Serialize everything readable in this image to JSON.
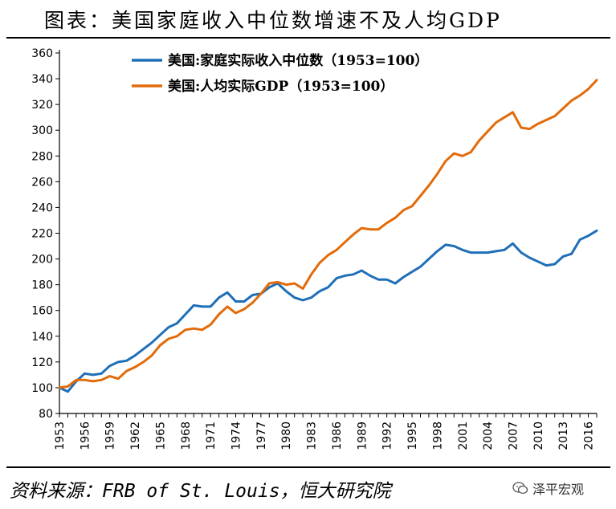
{
  "title": "图表：美国家庭收入中位数增速不及人均GDP",
  "source": "资料来源：FRB of St. Louis，恒大研究院",
  "brand": {
    "label": "泽平宏观",
    "icon": "wechat-bubble-icon"
  },
  "chart_data": {
    "type": "line",
    "title": "",
    "xlabel": "",
    "ylabel": "",
    "xlim": [
      1953,
      2017
    ],
    "ylim": [
      80,
      360
    ],
    "yticks": [
      80,
      100,
      120,
      140,
      160,
      180,
      200,
      220,
      240,
      260,
      280,
      300,
      320,
      340,
      360
    ],
    "xticks": [
      "1953",
      "1956",
      "1959",
      "1962",
      "1965",
      "1968",
      "1971",
      "1974",
      "1977",
      "1980",
      "1983",
      "1986",
      "1989",
      "1992",
      "1995",
      "1998",
      "2001",
      "2004",
      "2007",
      "2010",
      "2013",
      "2016"
    ],
    "legend": "top-left",
    "grid": false,
    "x": [
      1953,
      1954,
      1955,
      1956,
      1957,
      1958,
      1959,
      1960,
      1961,
      1962,
      1963,
      1964,
      1965,
      1966,
      1967,
      1968,
      1969,
      1970,
      1971,
      1972,
      1973,
      1974,
      1975,
      1976,
      1977,
      1978,
      1979,
      1980,
      1981,
      1982,
      1983,
      1984,
      1985,
      1986,
      1987,
      1988,
      1989,
      1990,
      1991,
      1992,
      1993,
      1994,
      1995,
      1996,
      1997,
      1998,
      1999,
      2000,
      2001,
      2002,
      2003,
      2004,
      2005,
      2006,
      2007,
      2008,
      2009,
      2010,
      2011,
      2012,
      2013,
      2014,
      2015,
      2016,
      2017
    ],
    "series": [
      {
        "name": "美国:家庭实际收入中位数（1953=100）",
        "color": "#1f6fb8",
        "values": [
          100,
          97,
          105,
          111,
          110,
          111,
          117,
          120,
          121,
          125,
          130,
          135,
          141,
          147,
          150,
          157,
          164,
          163,
          163,
          170,
          174,
          167,
          167,
          172,
          173,
          178,
          181,
          175,
          170,
          168,
          170,
          175,
          178,
          185,
          187,
          188,
          191,
          187,
          184,
          184,
          181,
          186,
          190,
          194,
          200,
          206,
          211,
          210,
          207,
          205,
          205,
          205,
          206,
          207,
          212,
          205,
          201,
          198,
          195,
          196,
          202,
          204,
          215,
          218,
          222
        ]
      },
      {
        "name": "美国:人均实际GDP（1953=100）",
        "color": "#e26b0a",
        "values": [
          100,
          101,
          106,
          106,
          105,
          106,
          109,
          107,
          113,
          116,
          120,
          125,
          133,
          138,
          140,
          145,
          146,
          145,
          149,
          157,
          163,
          158,
          161,
          166,
          173,
          181,
          182,
          180,
          181,
          177,
          188,
          197,
          203,
          207,
          213,
          219,
          224,
          223,
          223,
          228,
          232,
          238,
          241,
          249,
          257,
          266,
          276,
          282,
          280,
          283,
          292,
          299,
          306,
          310,
          314,
          302,
          301,
          305,
          308,
          311,
          317,
          323,
          327,
          332,
          339
        ]
      }
    ]
  }
}
